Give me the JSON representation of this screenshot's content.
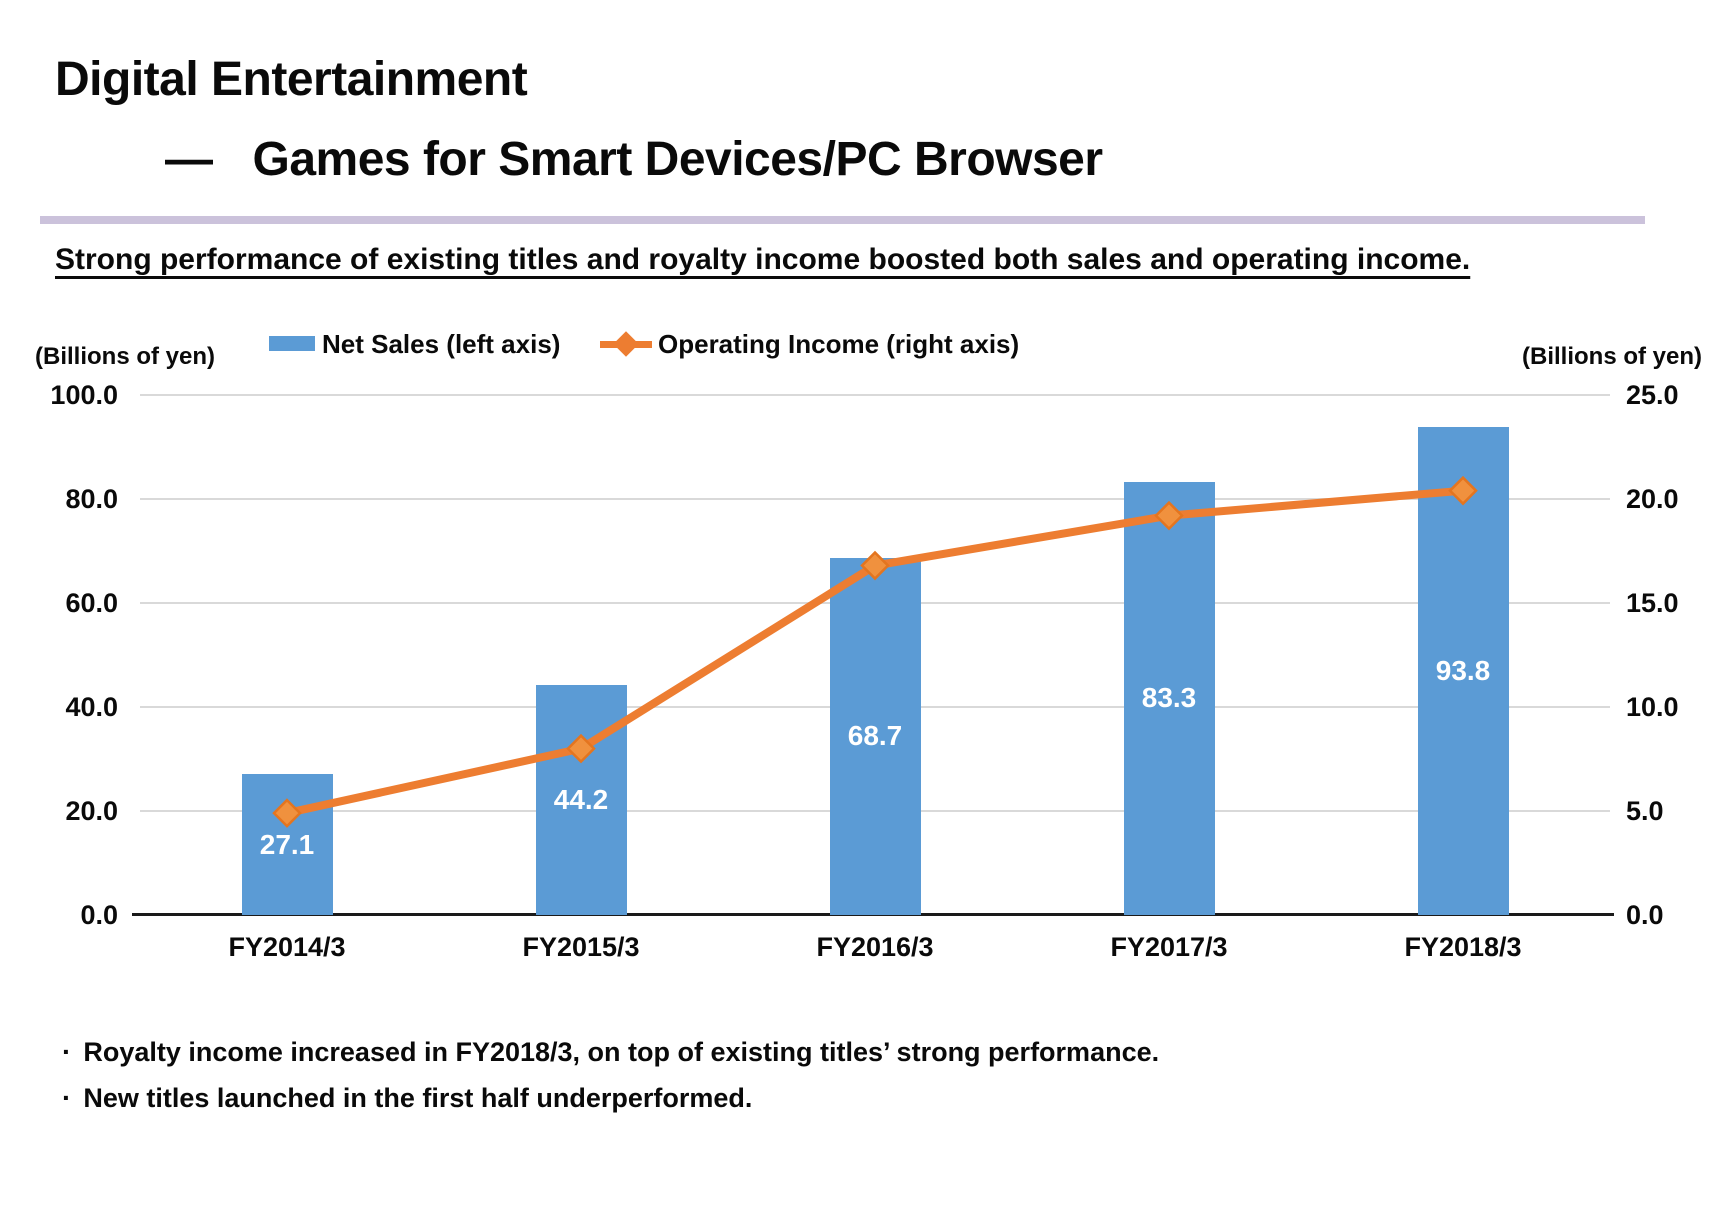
{
  "title": {
    "line1": "Digital Entertainment",
    "dash": "—",
    "line2": "Games for Smart Devices/PC Browser"
  },
  "subtitle": "Strong performance of existing titles and royalty income boosted both sales and operating income.",
  "bullets": {
    "marker": "·",
    "items": [
      "Royalty income increased in FY2018/3, on top of existing titles’ strong performance.",
      "New titles launched in the first half underperformed."
    ]
  },
  "colors": {
    "bar": "#5B9BD5",
    "line": "#ED7D31",
    "marker_fill": "#F0913E",
    "marker_stroke": "#E4751F",
    "divider": "#CBC2DB",
    "gridline": "#D9D9D9",
    "axis": "#1A1A1A",
    "bar_label_text": "#FFFFFF"
  },
  "chart_data": {
    "type": "bar+line",
    "categories": [
      "FY2014/3",
      "FY2015/3",
      "FY2016/3",
      "FY2017/3",
      "FY2018/3"
    ],
    "series": [
      {
        "name": "Net Sales (left axis)",
        "type": "bar",
        "axis": "left",
        "values": [
          27.1,
          44.2,
          68.7,
          83.3,
          93.8
        ],
        "data_labels_shown": true
      },
      {
        "name": "Operating Income (right axis)",
        "type": "line",
        "axis": "right",
        "values": [
          4.9,
          8.0,
          16.8,
          19.2,
          20.4
        ],
        "data_labels_shown": false,
        "values_estimated_from_gridlines": true
      }
    ],
    "left_axis": {
      "unit": "(Billions of yen)",
      "min": 0,
      "max": 100,
      "tick_interval": 20,
      "ticks": [
        "100.0",
        "80.0",
        "60.0",
        "40.0",
        "20.0",
        "0.0"
      ]
    },
    "right_axis": {
      "unit": "(Billions of yen)",
      "min": 0,
      "max": 25,
      "tick_interval": 5,
      "ticks": [
        "25.0",
        "20.0",
        "15.0",
        "10.0",
        "5.0",
        "0.0"
      ]
    },
    "grid": true,
    "legend_position": "top"
  }
}
